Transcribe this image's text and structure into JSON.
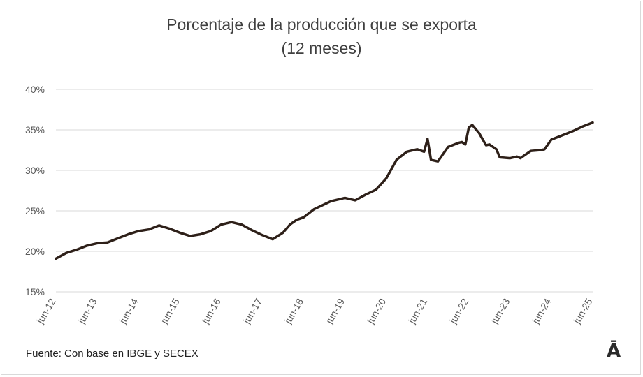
{
  "chart_data": {
    "type": "line",
    "title": "Porcentaje de la producción que se exporta",
    "subtitle": "(12 meses)",
    "xlabel": "",
    "ylabel": "",
    "x_ticks": [
      "jun-12",
      "jun-13",
      "jun-14",
      "jun-15",
      "jun-16",
      "jun-17",
      "jun-18",
      "jun-19",
      "jun-20",
      "jun-21",
      "jun-22",
      "jun-23",
      "jun-24",
      "jun-25"
    ],
    "y_ticks": [
      "15%",
      "20%",
      "25%",
      "30%",
      "35%",
      "40%"
    ],
    "ylim": [
      15,
      40
    ],
    "grid": "horizontal",
    "legend": "none",
    "line_color": "#2e2019",
    "series": [
      {
        "x": [
          "jun-12",
          "sep-12",
          "dic-12",
          "mar-13",
          "jun-13",
          "sep-13",
          "dic-13",
          "mar-14",
          "jun-14",
          "sep-14",
          "dic-14",
          "mar-15",
          "jun-15",
          "sep-15",
          "dic-15",
          "mar-16",
          "jun-16",
          "sep-16",
          "dic-16",
          "mar-17",
          "jun-17",
          "sep-17",
          "dic-17",
          "feb-18",
          "mar-18",
          "abr-18",
          "jun-18",
          "sep-18",
          "dic-18",
          "feb-19",
          "mar-19",
          "abr-19",
          "jun-19",
          "sep-19",
          "dic-19",
          "mar-20",
          "jun-20",
          "sep-20",
          "dic-20",
          "mar-21",
          "may-21",
          "jun-21",
          "jul-21",
          "sep-21",
          "dic-21",
          "mar-22",
          "abr-22",
          "may-22",
          "jun-22",
          "jul-22",
          "sep-22",
          "nov-22",
          "dic-22",
          "feb-23",
          "mar-23",
          "jun-23",
          "ago-23",
          "sep-23",
          "dic-23",
          "mar-24",
          "abr-24",
          "jun-24",
          "sep-24",
          "dic-24",
          "mar-25",
          "jun-25"
        ],
        "values": [
          19.1,
          19.8,
          20.2,
          20.7,
          21.0,
          21.1,
          21.6,
          22.1,
          22.5,
          22.7,
          23.2,
          22.8,
          22.3,
          21.9,
          22.1,
          22.5,
          23.3,
          23.6,
          23.3,
          22.6,
          22.0,
          21.5,
          22.3,
          23.3,
          23.6,
          23.9,
          24.2,
          25.2,
          25.8,
          26.2,
          26.3,
          26.4,
          26.6,
          26.3,
          27.0,
          27.6,
          29.0,
          31.3,
          32.3,
          32.6,
          32.3,
          33.9,
          31.3,
          31.1,
          32.9,
          33.4,
          33.5,
          33.2,
          35.3,
          35.6,
          34.6,
          33.1,
          33.2,
          32.6,
          31.6,
          31.5,
          31.7,
          31.5,
          32.4,
          32.5,
          32.6,
          33.8,
          34.3,
          34.8,
          35.4,
          35.9
        ]
      }
    ]
  },
  "source": "Fuente: Con base en IBGE y SECEX",
  "logo": "Ā"
}
